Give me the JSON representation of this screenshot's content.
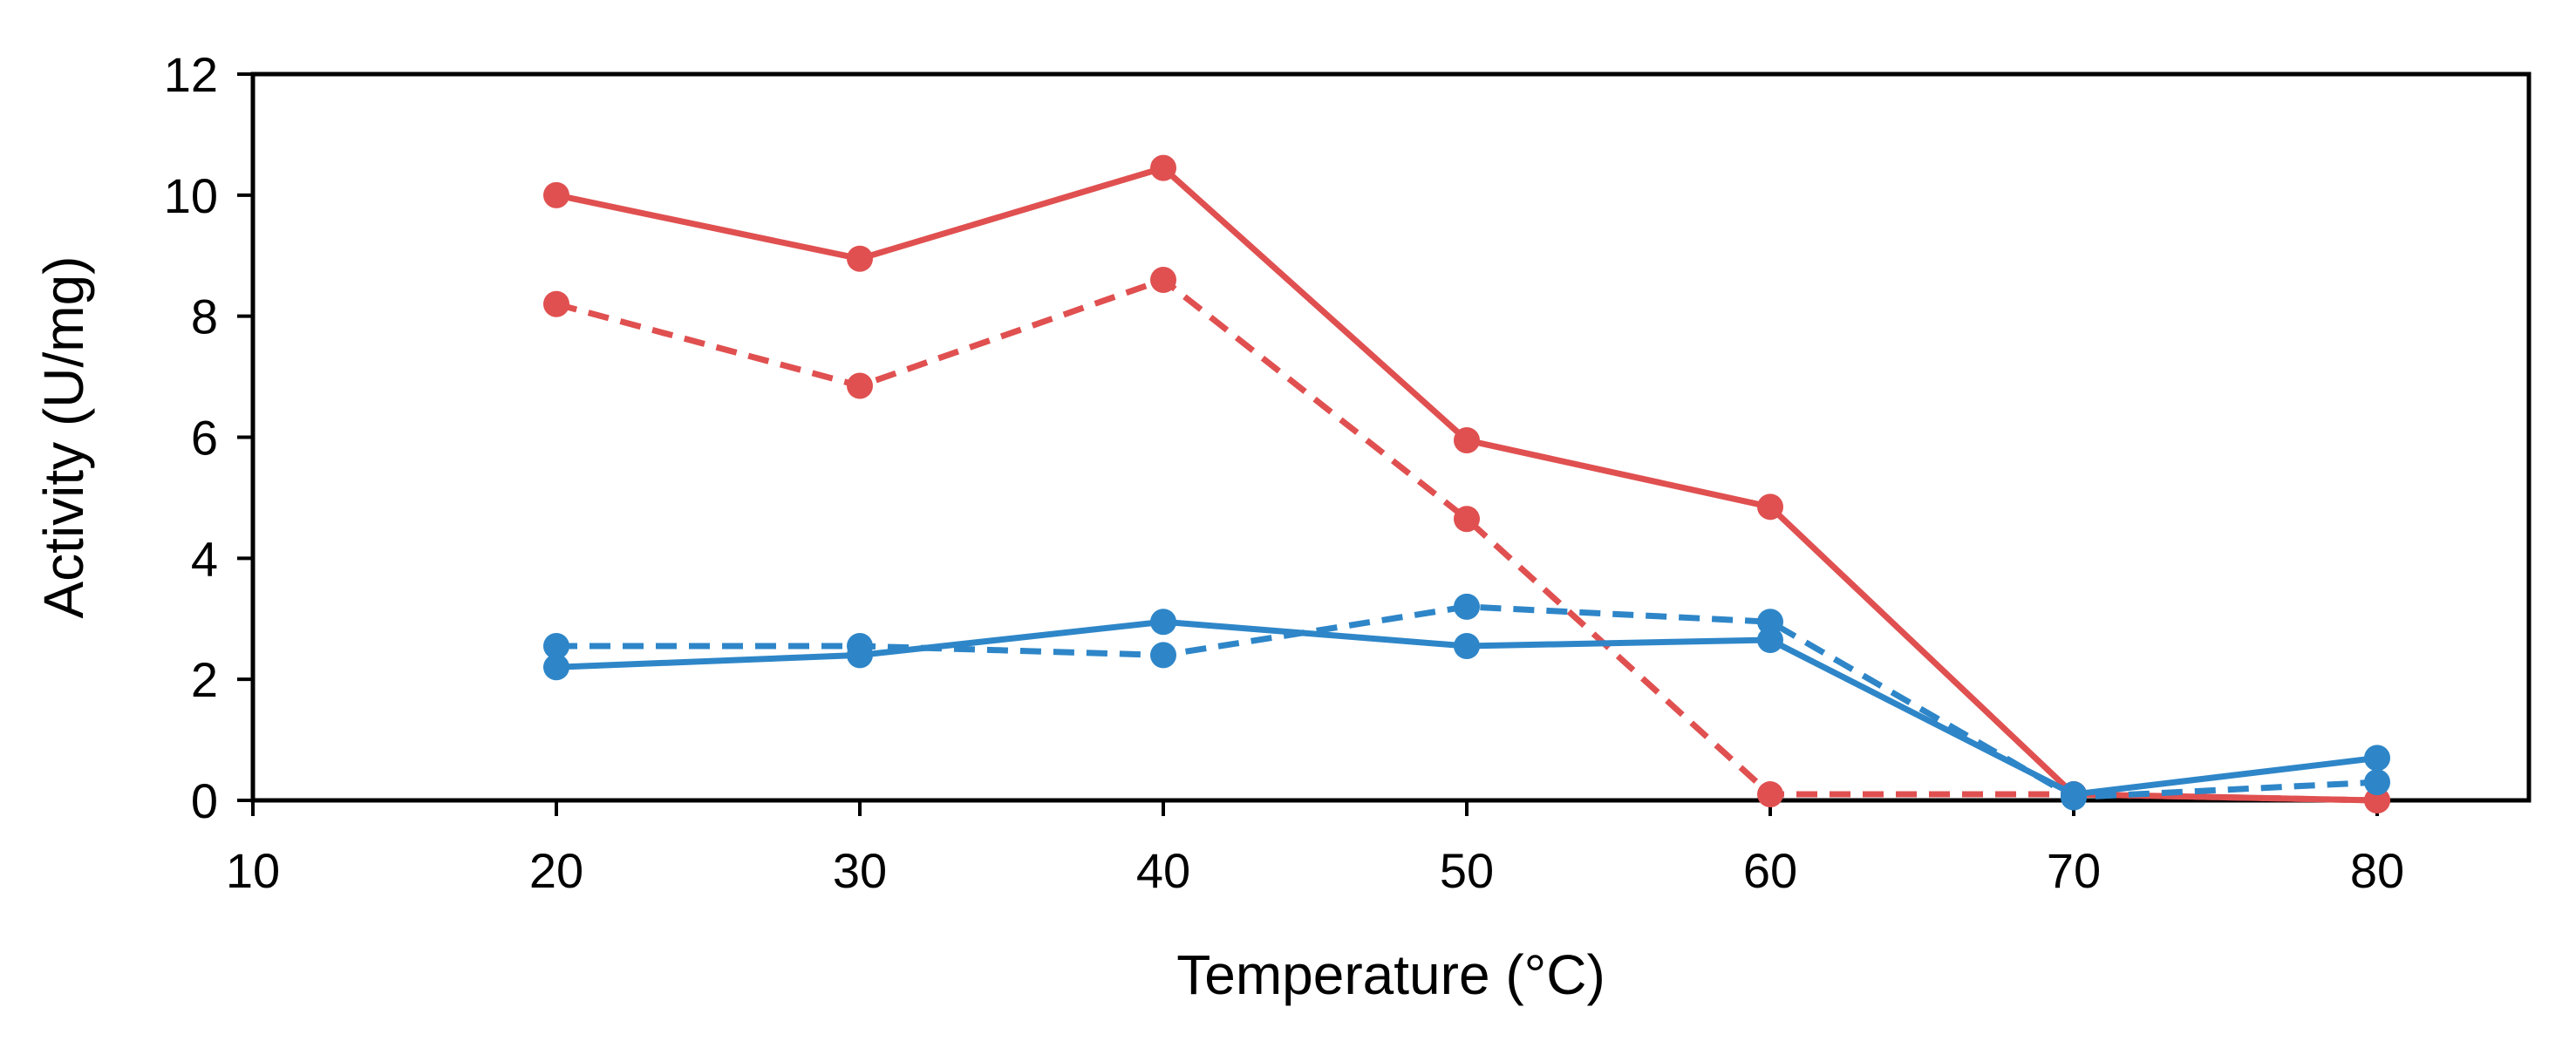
{
  "chart_data": {
    "type": "line",
    "title": "",
    "xlabel": "Temperature (°C)",
    "ylabel": "Activity (U/mg)",
    "xlim": [
      10,
      85
    ],
    "ylim": [
      0,
      12
    ],
    "xticks": [
      10,
      20,
      30,
      40,
      50,
      60,
      70,
      80
    ],
    "yticks": [
      0,
      2,
      4,
      6,
      8,
      10,
      12
    ],
    "grid": false,
    "legend": "none",
    "x": [
      20,
      30,
      40,
      50,
      60,
      70,
      80
    ],
    "series": [
      {
        "name": "red solid",
        "color": "#e05050",
        "dash": "solid",
        "values": [
          10.0,
          8.95,
          10.45,
          5.95,
          4.85,
          0.1,
          0.0
        ]
      },
      {
        "name": "red dashed",
        "color": "#e05050",
        "dash": "dashed",
        "values": [
          8.2,
          6.85,
          8.6,
          4.65,
          0.1,
          0.1,
          0.0
        ]
      },
      {
        "name": "blue solid",
        "color": "#2e86c8",
        "dash": "solid",
        "values": [
          2.2,
          2.4,
          2.95,
          2.55,
          2.65,
          0.1,
          0.7
        ]
      },
      {
        "name": "blue dashed",
        "color": "#2e86c8",
        "dash": "dashed",
        "values": [
          2.55,
          2.55,
          2.4,
          3.2,
          2.95,
          0.05,
          0.3
        ]
      }
    ]
  }
}
